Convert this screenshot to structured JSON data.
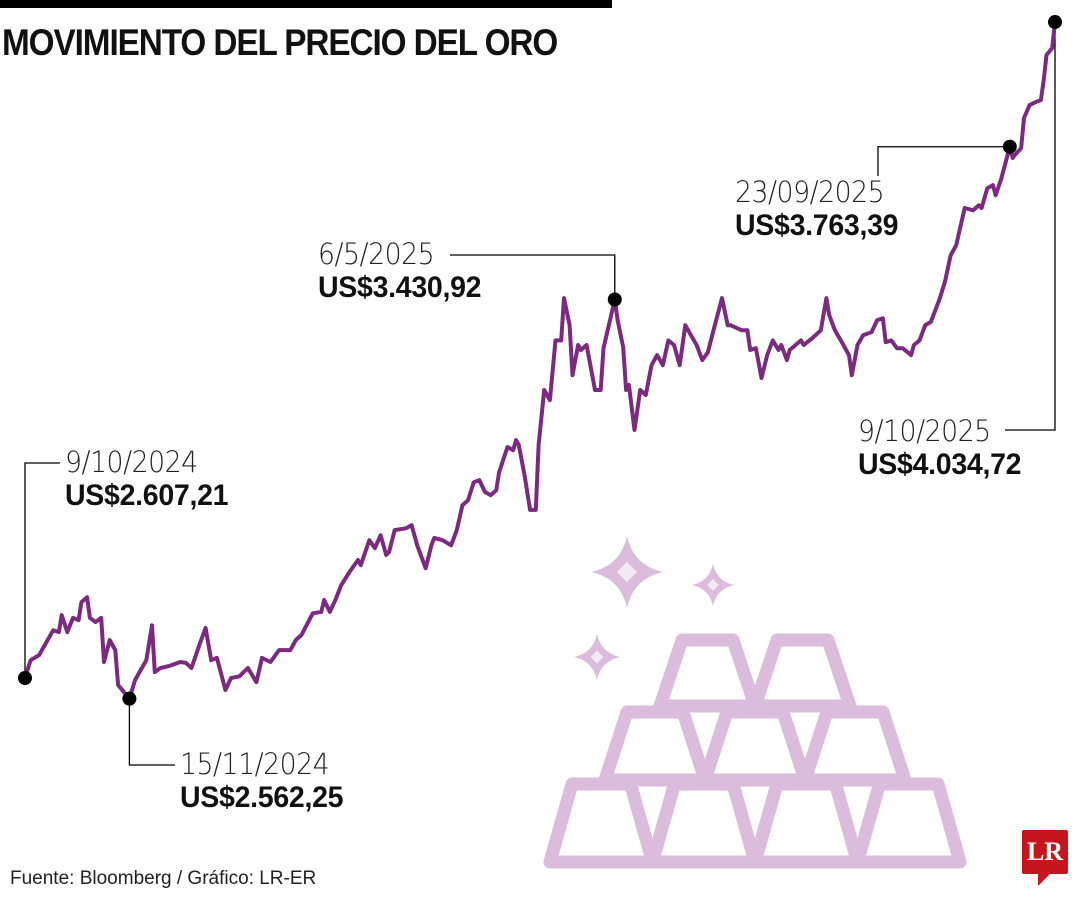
{
  "title": "MOVIMIENTO DEL PRECIO DEL ORO",
  "source": "Fuente: Bloomberg / Gráfico: LR-ER",
  "logo": "LR",
  "colors": {
    "line": "#7b2a80",
    "fill_top": "#efdff0",
    "fill_bottom": "#ffffff",
    "illustration": "#dbbcdc",
    "logo": "#c4161c",
    "marker": "#000000"
  },
  "illustration_icon": "gold-bars-with-sparkles",
  "chart_data": {
    "type": "area",
    "title": "MOVIMIENTO DEL PRECIO DEL ORO",
    "xlabel": "",
    "ylabel": "",
    "xlim": [
      "2024-10-09",
      "2025-10-09"
    ],
    "grid": false,
    "axes_visible": false,
    "annotations": [
      {
        "date": "2024-10-09",
        "label_date": "9/10/2024",
        "label_value": "US$2.607,21",
        "value": 2607.21
      },
      {
        "date": "2024-11-15",
        "label_date": "15/11/2024",
        "label_value": "US$2.562,25",
        "value": 2562.25
      },
      {
        "date": "2025-05-06",
        "label_date": "6/5/2025",
        "label_value": "US$3.430,92",
        "value": 3430.92
      },
      {
        "date": "2025-09-23",
        "label_date": "23/09/2025",
        "label_value": "US$3.763,39",
        "value": 3763.39
      },
      {
        "date": "2025-10-09",
        "label_date": "9/10/2025",
        "label_value": "US$4.034,72",
        "value": 4034.72
      }
    ],
    "series": [
      {
        "points": [
          [
            "2024-10-09",
            2607.21
          ],
          [
            "2024-10-11",
            2646
          ],
          [
            "2024-10-14",
            2657
          ],
          [
            "2024-10-16",
            2679
          ],
          [
            "2024-10-19",
            2711
          ],
          [
            "2024-10-21",
            2707
          ],
          [
            "2024-10-22",
            2744
          ],
          [
            "2024-10-24",
            2707
          ],
          [
            "2024-10-26",
            2738
          ],
          [
            "2024-10-28",
            2733
          ],
          [
            "2024-10-29",
            2772
          ],
          [
            "2024-10-31",
            2783
          ],
          [
            "2024-11-01",
            2738
          ],
          [
            "2024-11-03",
            2729
          ],
          [
            "2024-11-05",
            2738
          ],
          [
            "2024-11-06",
            2642
          ],
          [
            "2024-11-08",
            2690
          ],
          [
            "2024-11-10",
            2668
          ],
          [
            "2024-11-11",
            2592
          ],
          [
            "2024-11-15",
            2562.25
          ],
          [
            "2024-11-17",
            2603
          ],
          [
            "2024-11-21",
            2646
          ],
          [
            "2024-11-23",
            2722
          ],
          [
            "2024-11-24",
            2620
          ],
          [
            "2024-11-26",
            2629
          ],
          [
            "2024-11-29",
            2633
          ],
          [
            "2024-12-03",
            2642
          ],
          [
            "2024-12-05",
            2640
          ],
          [
            "2024-12-07",
            2629
          ],
          [
            "2024-12-10",
            2683
          ],
          [
            "2024-12-12",
            2716
          ],
          [
            "2024-12-14",
            2646
          ],
          [
            "2024-12-16",
            2651
          ],
          [
            "2024-12-19",
            2581
          ],
          [
            "2024-12-21",
            2607
          ],
          [
            "2024-12-24",
            2611
          ],
          [
            "2024-12-27",
            2629
          ],
          [
            "2024-12-30",
            2598
          ],
          [
            "2025-01-01",
            2651
          ],
          [
            "2025-01-04",
            2642
          ],
          [
            "2025-01-07",
            2668
          ],
          [
            "2025-01-11",
            2668
          ],
          [
            "2025-01-13",
            2690
          ],
          [
            "2025-01-15",
            2701
          ],
          [
            "2025-01-19",
            2748
          ],
          [
            "2025-01-22",
            2751
          ],
          [
            "2025-01-23",
            2777
          ],
          [
            "2025-01-25",
            2751
          ],
          [
            "2025-01-27",
            2777
          ],
          [
            "2025-01-29",
            2809
          ],
          [
            "2025-02-01",
            2838
          ],
          [
            "2025-02-04",
            2864
          ],
          [
            "2025-02-05",
            2853
          ],
          [
            "2025-02-08",
            2907
          ],
          [
            "2025-02-10",
            2890
          ],
          [
            "2025-02-12",
            2918
          ],
          [
            "2025-02-14",
            2875
          ],
          [
            "2025-02-15",
            2881
          ],
          [
            "2025-02-17",
            2929
          ],
          [
            "2025-02-21",
            2933
          ],
          [
            "2025-02-23",
            2940
          ],
          [
            "2025-02-25",
            2896
          ],
          [
            "2025-02-28",
            2846
          ],
          [
            "2025-03-02",
            2896
          ],
          [
            "2025-03-03",
            2912
          ],
          [
            "2025-03-06",
            2907
          ],
          [
            "2025-03-09",
            2896
          ],
          [
            "2025-03-11",
            2929
          ],
          [
            "2025-03-13",
            2983
          ],
          [
            "2025-03-15",
            2994
          ],
          [
            "2025-03-17",
            3033
          ],
          [
            "2025-03-19",
            3038
          ],
          [
            "2025-03-21",
            3012
          ],
          [
            "2025-03-23",
            3005
          ],
          [
            "2025-03-25",
            3016
          ],
          [
            "2025-03-26",
            3055
          ],
          [
            "2025-03-29",
            3110
          ],
          [
            "2025-03-31",
            3103
          ],
          [
            "2025-04-01",
            3125
          ],
          [
            "2025-04-02",
            3114
          ],
          [
            "2025-04-04",
            3049
          ],
          [
            "2025-04-06",
            2973
          ],
          [
            "2025-04-08",
            2973
          ],
          [
            "2025-04-09",
            3114
          ],
          [
            "2025-04-11",
            3234
          ],
          [
            "2025-04-13",
            3212
          ],
          [
            "2025-04-15",
            3342
          ],
          [
            "2025-04-17",
            3342
          ],
          [
            "2025-04-18",
            3434
          ],
          [
            "2025-04-20",
            3375
          ],
          [
            "2025-04-21",
            3266
          ],
          [
            "2025-04-23",
            3332
          ],
          [
            "2025-04-24",
            3321
          ],
          [
            "2025-04-26",
            3332
          ],
          [
            "2025-04-27",
            3299
          ],
          [
            "2025-04-29",
            3234
          ],
          [
            "2025-05-01",
            3234
          ],
          [
            "2025-05-02",
            3325
          ],
          [
            "2025-05-06",
            3430.92
          ],
          [
            "2025-05-07",
            3386
          ],
          [
            "2025-05-09",
            3327
          ],
          [
            "2025-05-10",
            3234
          ],
          [
            "2025-05-11",
            3245
          ],
          [
            "2025-05-13",
            3147
          ],
          [
            "2025-05-15",
            3234
          ],
          [
            "2025-05-17",
            3223
          ],
          [
            "2025-05-19",
            3288
          ],
          [
            "2025-05-21",
            3310
          ],
          [
            "2025-05-23",
            3288
          ],
          [
            "2025-05-25",
            3342
          ],
          [
            "2025-05-27",
            3332
          ],
          [
            "2025-05-29",
            3288
          ],
          [
            "2025-05-31",
            3375
          ],
          [
            "2025-06-02",
            3353
          ],
          [
            "2025-06-04",
            3332
          ],
          [
            "2025-06-06",
            3299
          ],
          [
            "2025-06-08",
            3316
          ],
          [
            "2025-06-10",
            3364
          ],
          [
            "2025-06-13",
            3434
          ],
          [
            "2025-06-15",
            3375
          ],
          [
            "2025-06-16",
            3375
          ],
          [
            "2025-06-20",
            3364
          ],
          [
            "2025-06-22",
            3364
          ],
          [
            "2025-06-23",
            3321
          ],
          [
            "2025-06-25",
            3325
          ],
          [
            "2025-06-27",
            3260
          ],
          [
            "2025-06-29",
            3310
          ],
          [
            "2025-07-01",
            3342
          ],
          [
            "2025-07-03",
            3321
          ],
          [
            "2025-07-04",
            3332
          ],
          [
            "2025-07-06",
            3299
          ],
          [
            "2025-07-07",
            3321
          ],
          [
            "2025-07-11",
            3342
          ],
          [
            "2025-07-12",
            3332
          ],
          [
            "2025-07-15",
            3347
          ],
          [
            "2025-07-18",
            3364
          ],
          [
            "2025-07-20",
            3434
          ],
          [
            "2025-07-21",
            3397
          ],
          [
            "2025-07-23",
            3364
          ],
          [
            "2025-07-26",
            3332
          ],
          [
            "2025-07-28",
            3310
          ],
          [
            "2025-07-29",
            3266
          ],
          [
            "2025-07-31",
            3332
          ],
          [
            "2025-08-02",
            3353
          ],
          [
            "2025-08-05",
            3360
          ],
          [
            "2025-08-07",
            3386
          ],
          [
            "2025-08-09",
            3390
          ],
          [
            "2025-08-10",
            3338
          ],
          [
            "2025-08-12",
            3342
          ],
          [
            "2025-08-14",
            3325
          ],
          [
            "2025-08-16",
            3325
          ],
          [
            "2025-08-19",
            3310
          ],
          [
            "2025-08-20",
            3332
          ],
          [
            "2025-08-22",
            3342
          ],
          [
            "2025-08-24",
            3375
          ],
          [
            "2025-08-26",
            3382
          ],
          [
            "2025-08-29",
            3430
          ],
          [
            "2025-08-31",
            3469
          ],
          [
            "2025-09-02",
            3527
          ],
          [
            "2025-09-04",
            3549
          ],
          [
            "2025-09-05",
            3577
          ],
          [
            "2025-09-07",
            3630
          ],
          [
            "2025-09-10",
            3625
          ],
          [
            "2025-09-12",
            3636
          ],
          [
            "2025-09-13",
            3630
          ],
          [
            "2025-09-15",
            3673
          ],
          [
            "2025-09-17",
            3680
          ],
          [
            "2025-09-18",
            3658
          ],
          [
            "2025-09-20",
            3695
          ],
          [
            "2025-09-23",
            3763.39
          ],
          [
            "2025-09-24",
            3739
          ],
          [
            "2025-09-25",
            3747
          ],
          [
            "2025-09-27",
            3760
          ],
          [
            "2025-09-28",
            3826
          ],
          [
            "2025-09-30",
            3854
          ],
          [
            "2025-10-02",
            3860
          ],
          [
            "2025-10-04",
            3865
          ],
          [
            "2025-10-05",
            3908
          ],
          [
            "2025-10-06",
            3963
          ],
          [
            "2025-10-08",
            3978
          ],
          [
            "2025-10-09",
            4034.72
          ]
        ]
      }
    ]
  }
}
